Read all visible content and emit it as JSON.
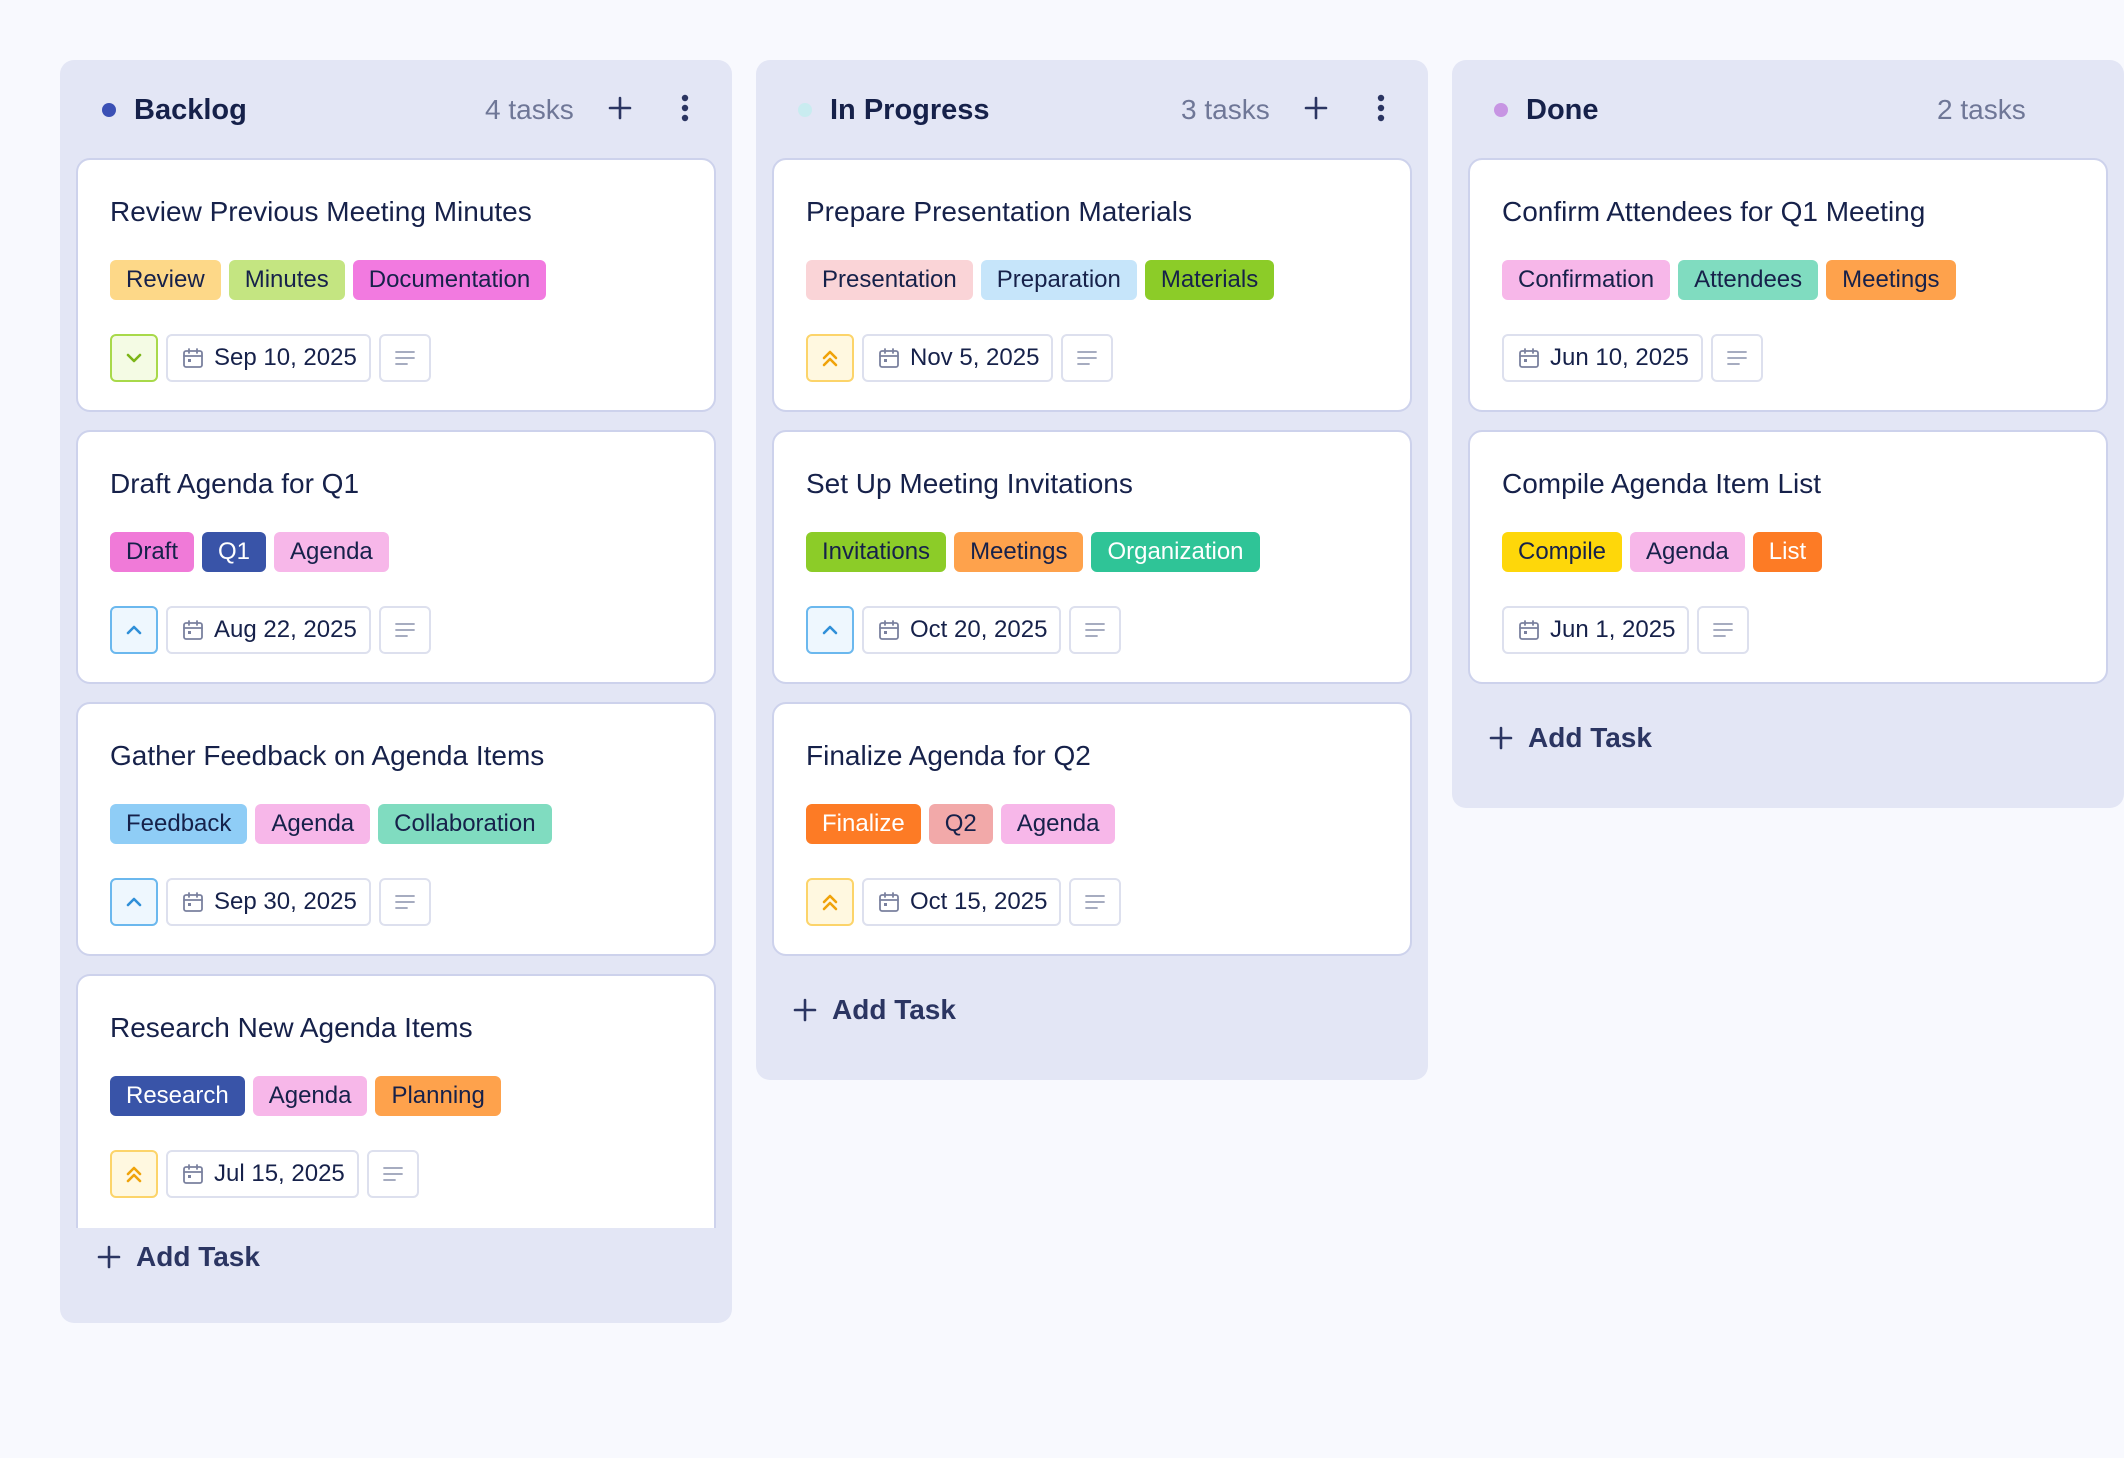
{
  "columns": [
    {
      "title": "Backlog",
      "count": "4 tasks",
      "dot_color": "#3b50b5",
      "show_add": true,
      "show_menu": true,
      "add_task_label": "Add Task",
      "cards": [
        {
          "title": "Review Previous Meeting Minutes",
          "tags": [
            {
              "label": "Review",
              "bg": "#fdd888",
              "fg": "#16214a"
            },
            {
              "label": "Minutes",
              "bg": "#c4e581",
              "fg": "#16214a"
            },
            {
              "label": "Documentation",
              "bg": "#f27ae0",
              "fg": "#16214a"
            }
          ],
          "priority": "low",
          "date": "Sep 10, 2025"
        },
        {
          "title": "Draft Agenda for Q1",
          "tags": [
            {
              "label": "Draft",
              "bg": "#f07ad8",
              "fg": "#16214a"
            },
            {
              "label": "Q1",
              "bg": "#3954a8",
              "fg": "#ffffff"
            },
            {
              "label": "Agenda",
              "bg": "#f7b7e9",
              "fg": "#16214a"
            }
          ],
          "priority": "medium",
          "date": "Aug 22, 2025"
        },
        {
          "title": "Gather Feedback on Agenda Items",
          "tags": [
            {
              "label": "Feedback",
              "bg": "#8fcdf6",
              "fg": "#16214a"
            },
            {
              "label": "Agenda",
              "bg": "#f7b7e9",
              "fg": "#16214a"
            },
            {
              "label": "Collaboration",
              "bg": "#80dcc0",
              "fg": "#16214a"
            }
          ],
          "priority": "medium",
          "date": "Sep 30, 2025"
        },
        {
          "title": "Research New Agenda Items",
          "tags": [
            {
              "label": "Research",
              "bg": "#3954a8",
              "fg": "#ffffff"
            },
            {
              "label": "Agenda",
              "bg": "#f7b7e9",
              "fg": "#16214a"
            },
            {
              "label": "Planning",
              "bg": "#fea24c",
              "fg": "#16214a"
            }
          ],
          "priority": "high",
          "date": "Jul 15, 2025"
        }
      ]
    },
    {
      "title": "In Progress",
      "count": "3 tasks",
      "dot_color": "#c9ecf0",
      "show_add": true,
      "show_menu": true,
      "add_task_label": "Add Task",
      "cards": [
        {
          "title": "Prepare Presentation Materials",
          "tags": [
            {
              "label": "Presentation",
              "bg": "#fad4d7",
              "fg": "#16214a"
            },
            {
              "label": "Preparation",
              "bg": "#c6e5fa",
              "fg": "#16214a"
            },
            {
              "label": "Materials",
              "bg": "#8ccc28",
              "fg": "#16214a"
            }
          ],
          "priority": "high",
          "date": "Nov 5, 2025"
        },
        {
          "title": "Set Up Meeting Invitations",
          "tags": [
            {
              "label": "Invitations",
              "bg": "#8ccc28",
              "fg": "#16214a"
            },
            {
              "label": "Meetings",
              "bg": "#fea24c",
              "fg": "#16214a"
            },
            {
              "label": "Organization",
              "bg": "#2fc497",
              "fg": "#ffffff"
            }
          ],
          "priority": "medium",
          "date": "Oct 20, 2025"
        },
        {
          "title": "Finalize Agenda for Q2",
          "tags": [
            {
              "label": "Finalize",
              "bg": "#fd7b25",
              "fg": "#ffffff"
            },
            {
              "label": "Q2",
              "bg": "#f2a9a9",
              "fg": "#16214a"
            },
            {
              "label": "Agenda",
              "bg": "#f7b7e9",
              "fg": "#16214a"
            }
          ],
          "priority": "high",
          "date": "Oct 15, 2025"
        }
      ]
    },
    {
      "title": "Done",
      "count": "2 tasks",
      "dot_color": "#c795e3",
      "show_add": false,
      "show_menu": false,
      "add_task_label": "Add Task",
      "cards": [
        {
          "title": "Confirm Attendees for Q1 Meeting",
          "tags": [
            {
              "label": "Confirmation",
              "bg": "#f7b7e9",
              "fg": "#16214a"
            },
            {
              "label": "Attendees",
              "bg": "#80dcc0",
              "fg": "#16214a"
            },
            {
              "label": "Meetings",
              "bg": "#fea24c",
              "fg": "#16214a"
            }
          ],
          "priority": "none",
          "date": "Jun 10, 2025"
        },
        {
          "title": "Compile Agenda Item List",
          "tags": [
            {
              "label": "Compile",
              "bg": "#fed70a",
              "fg": "#16214a"
            },
            {
              "label": "Agenda",
              "bg": "#f7b7e9",
              "fg": "#16214a"
            },
            {
              "label": "List",
              "bg": "#fd7b25",
              "fg": "#ffffff"
            }
          ],
          "priority": "none",
          "date": "Jun 1, 2025"
        }
      ]
    }
  ],
  "icons": {
    "add": "plus-icon",
    "menu": "more-vertical-icon",
    "date": "calendar-icon",
    "notes": "notes-icon",
    "priority_low": "chevron-down-icon",
    "priority_medium": "chevron-up-icon",
    "priority_high": "double-chevron-up-icon"
  },
  "priority_colors": {
    "low": {
      "border": "#a8d94a",
      "bg": "#f4fbe4",
      "stroke": "#7cb518"
    },
    "medium": {
      "border": "#6bb8ee",
      "bg": "#eef7fe",
      "stroke": "#2f8fd8"
    },
    "high": {
      "border": "#fcd46a",
      "bg": "#fff8e0",
      "stroke": "#f0a30a"
    }
  }
}
